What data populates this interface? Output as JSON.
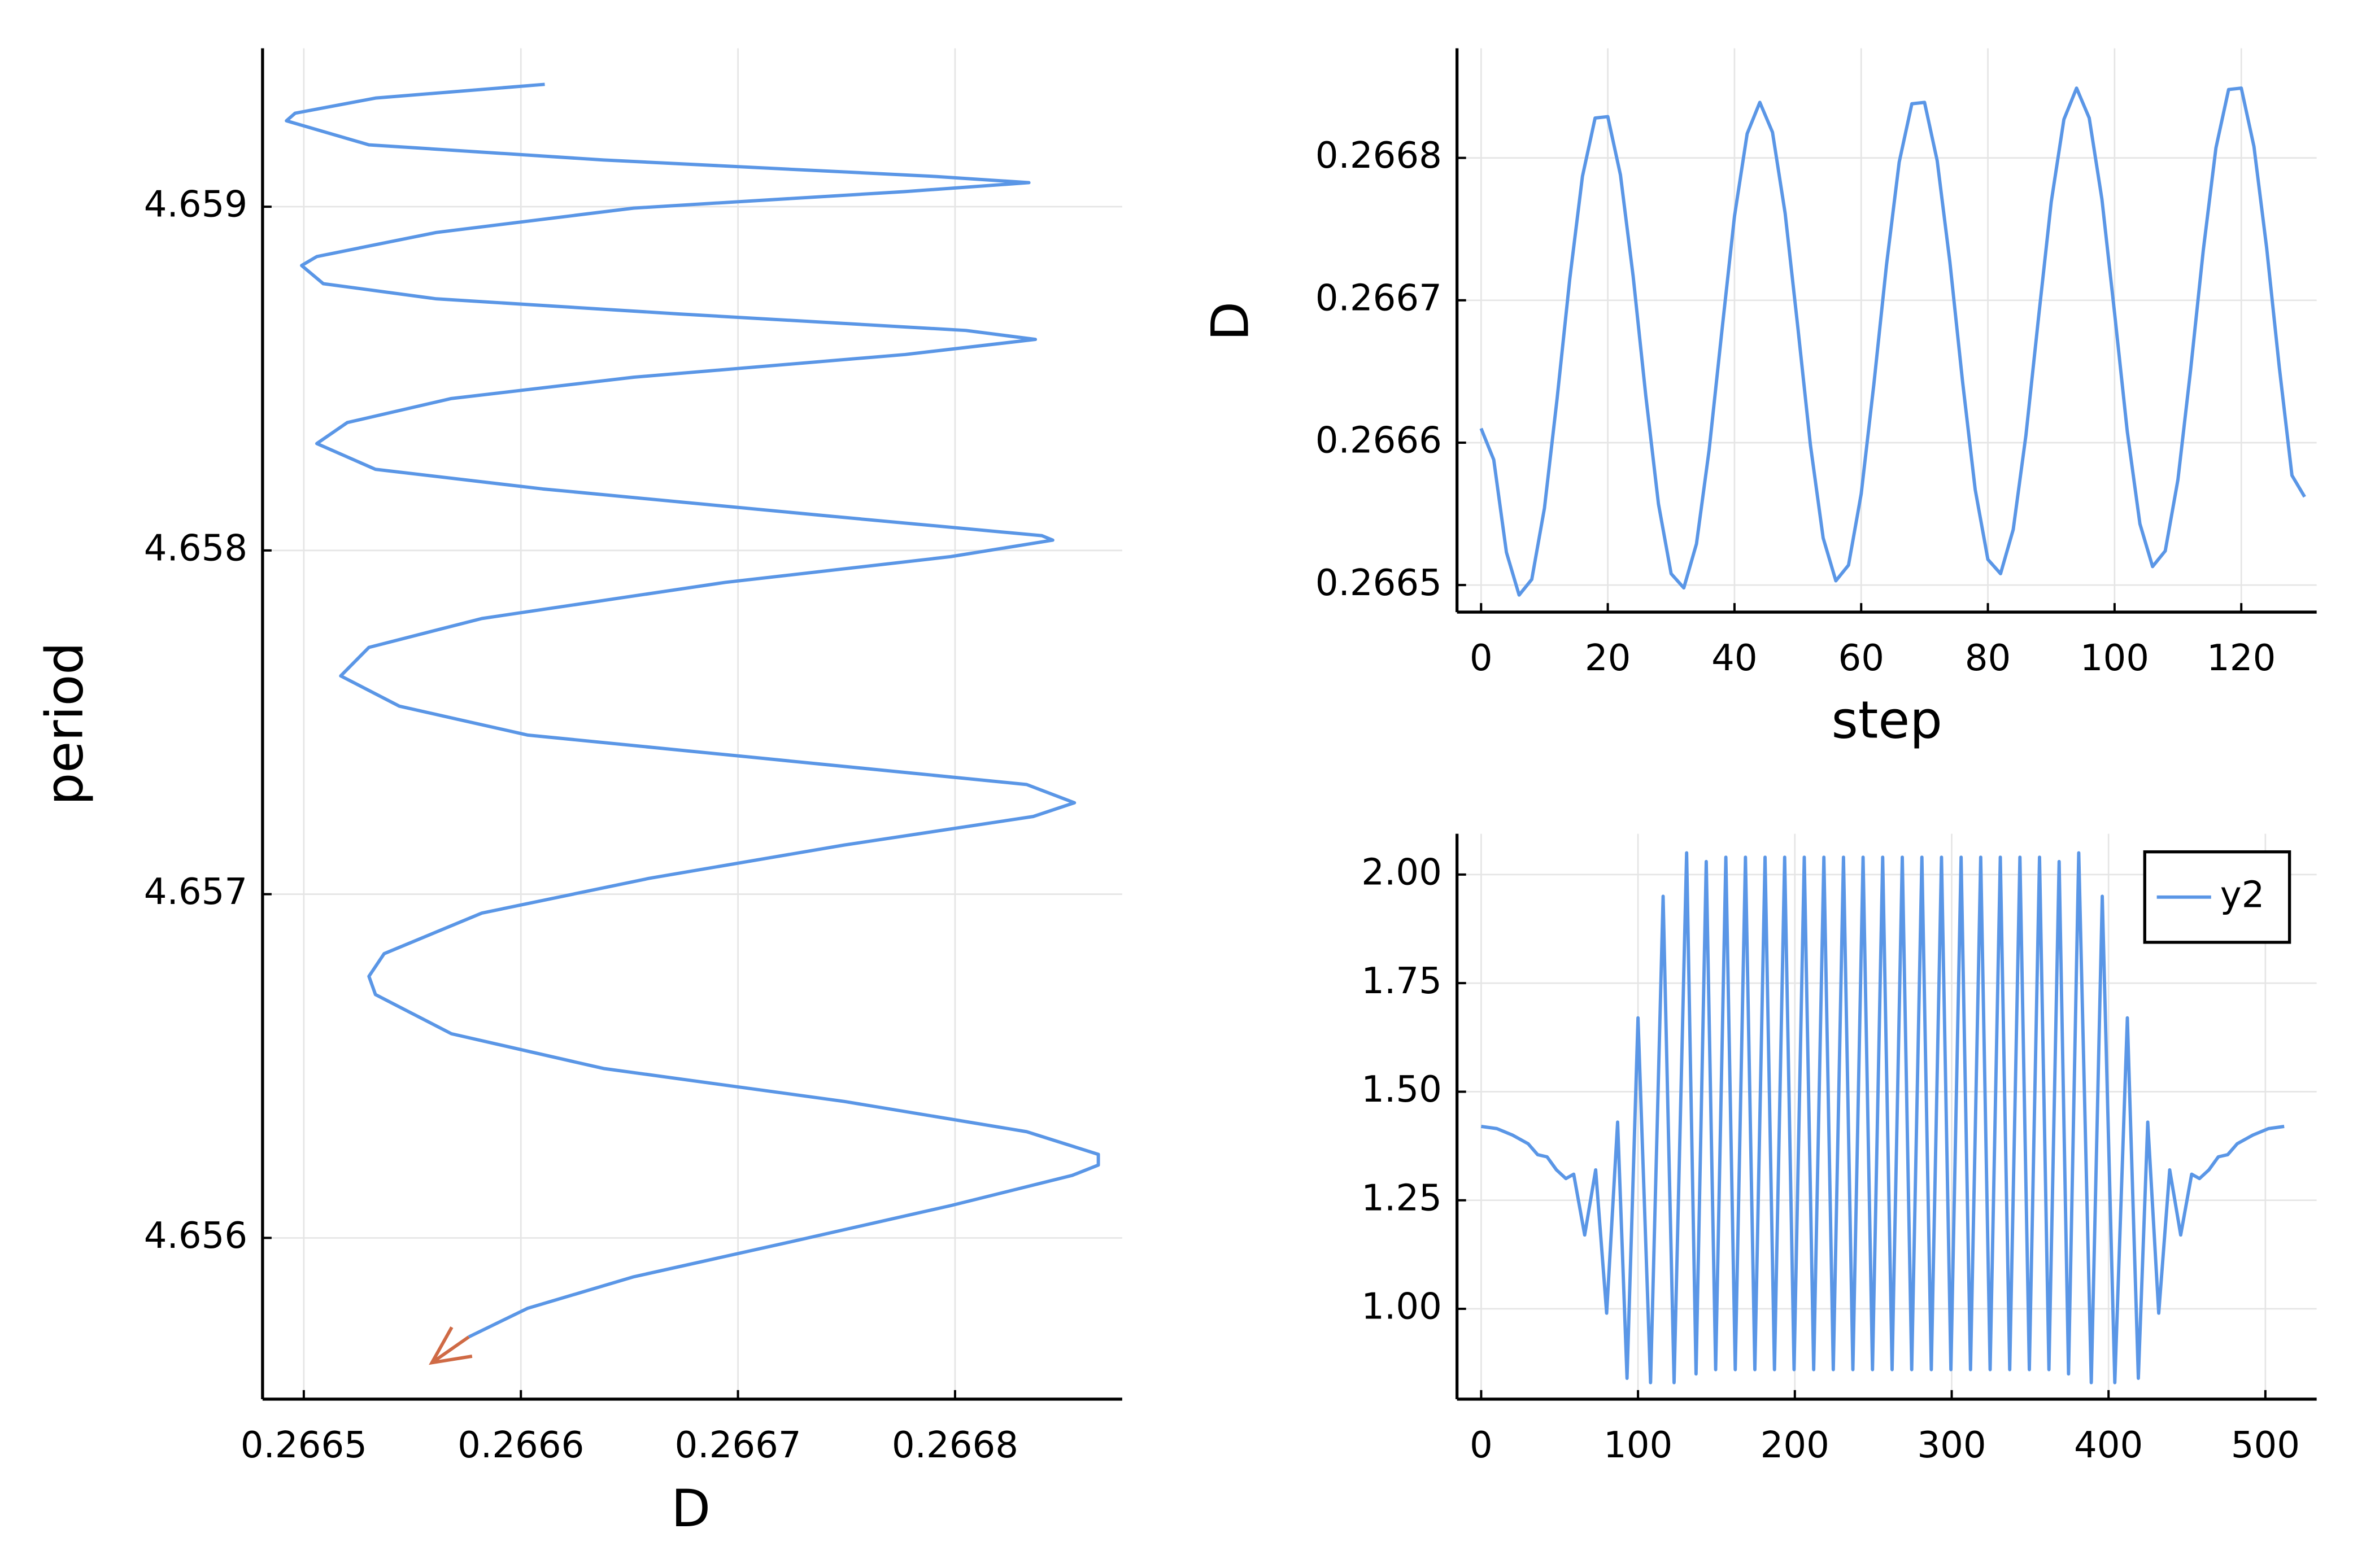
{
  "chart_data": [
    {
      "type": "line",
      "xlabel": "D",
      "ylabel": "period",
      "grid": true,
      "xlim": [
        0.266481,
        0.266877
      ],
      "ylim": [
        4.655531,
        4.659461
      ],
      "xticks": [
        0.2665,
        0.2666,
        0.2667,
        0.2668
      ],
      "yticks": [
        4.656,
        4.657,
        4.658,
        4.659
      ],
      "x": [
        0.266611,
        0.266533,
        0.266496,
        0.266492,
        0.26653,
        0.266638,
        0.266791,
        0.266834,
        0.266777,
        0.266652,
        0.266561,
        0.266506,
        0.266499,
        0.266509,
        0.266561,
        0.266673,
        0.266805,
        0.266837,
        0.266777,
        0.266652,
        0.266568,
        0.26652,
        0.266506,
        0.266533,
        0.26661,
        0.266742,
        0.26684,
        0.266845,
        0.266798,
        0.266694,
        0.266582,
        0.26653,
        0.266517,
        0.266544,
        0.266603,
        0.266707,
        0.266833,
        0.266855,
        0.266836,
        0.266749,
        0.266659,
        0.266582,
        0.266537,
        0.26653,
        0.266533,
        0.266568,
        0.266638,
        0.266749,
        0.266833,
        0.266866,
        0.266866,
        0.266854,
        0.266798,
        0.266721,
        0.266652,
        0.266603,
        0.266576
      ],
      "series": [
        {
          "color": "#5a96e6",
          "values": [
            4.659356,
            4.659316,
            4.659272,
            4.65925,
            4.65918,
            4.659136,
            4.659088,
            4.65907,
            4.659044,
            4.658996,
            4.658925,
            4.658855,
            4.658829,
            4.658776,
            4.658732,
            4.658688,
            4.65864,
            4.658614,
            4.65857,
            4.658504,
            4.658442,
            4.658372,
            4.658311,
            4.658236,
            4.658179,
            4.6581,
            4.658043,
            4.65803,
            4.657982,
            4.657907,
            4.657802,
            4.657718,
            4.657635,
            4.657547,
            4.657463,
            4.657398,
            4.657319,
            4.657266,
            4.657226,
            4.657143,
            4.657046,
            4.656945,
            4.656827,
            4.656761,
            4.656708,
            4.656594,
            4.656493,
            4.656397,
            4.656309,
            4.656243,
            4.656212,
            4.656182,
            4.656094,
            4.655984,
            4.655887,
            4.655795,
            4.655712
          ]
        }
      ],
      "arrow": {
        "color": "#cf6a45",
        "x": [
          0.266576,
          0.266559
        ],
        "values": [
          4.655712,
          4.655637
        ]
      }
    },
    {
      "type": "line",
      "xlabel": "step",
      "ylabel": "D",
      "grid": true,
      "xlim": [
        -3.8,
        131.9
      ],
      "ylim": [
        0.266481,
        0.266877
      ],
      "xticks": [
        0,
        20,
        40,
        60,
        80,
        100,
        120
      ],
      "yticks": [
        0.2665,
        0.2666,
        0.2667,
        0.2668
      ],
      "x": [
        0,
        2,
        4,
        6,
        8,
        10,
        12,
        14,
        16,
        18,
        20,
        22,
        24,
        26,
        28,
        30,
        32,
        34,
        36,
        38,
        40,
        42,
        44,
        46,
        48,
        50,
        52,
        54,
        56,
        58,
        60,
        62,
        64,
        66,
        68,
        70,
        72,
        74,
        76,
        78,
        80,
        82,
        84,
        86,
        88,
        90,
        92,
        94,
        96,
        98,
        100,
        102,
        104,
        106,
        108,
        110,
        112,
        114,
        116,
        118,
        120,
        122,
        124,
        126,
        128,
        130
      ],
      "series": [
        {
          "color": "#5a96e6",
          "values": [
            0.26661,
            0.266588,
            0.266523,
            0.266493,
            0.266504,
            0.266554,
            0.266631,
            0.266715,
            0.266787,
            0.266828,
            0.266829,
            0.266788,
            0.266717,
            0.266633,
            0.266557,
            0.266508,
            0.266498,
            0.266529,
            0.266595,
            0.266678,
            0.266759,
            0.266817,
            0.266839,
            0.266818,
            0.266761,
            0.266681,
            0.266598,
            0.266533,
            0.266503,
            0.266514,
            0.266564,
            0.266641,
            0.266725,
            0.266797,
            0.266838,
            0.266839,
            0.266798,
            0.266727,
            0.266643,
            0.266567,
            0.266518,
            0.266508,
            0.266539,
            0.266605,
            0.266688,
            0.266769,
            0.266827,
            0.266849,
            0.266828,
            0.266771,
            0.266691,
            0.266608,
            0.266543,
            0.266513,
            0.266524,
            0.266574,
            0.266651,
            0.266735,
            0.266807,
            0.266848,
            0.266849,
            0.266808,
            0.266737,
            0.266653,
            0.266577,
            0.266562
          ]
        }
      ]
    },
    {
      "type": "line",
      "grid": true,
      "legend": "top right",
      "xlim": [
        -15.4,
        532.7
      ],
      "ylim": [
        0.792,
        2.094
      ],
      "xticks": [
        0,
        100,
        200,
        300,
        400,
        500
      ],
      "yticks": [
        {
          "value": 1,
          "label": "1.00"
        },
        1.25,
        {
          "value": 1.5,
          "label": "1.50"
        },
        1.75,
        {
          "value": 2,
          "label": "2.00"
        }
      ],
      "x": [
        0,
        10,
        20,
        30,
        36,
        42,
        48,
        54,
        59,
        66,
        73,
        80,
        87,
        93,
        100,
        108,
        116,
        123,
        131,
        137,
        143.5,
        149.5,
        156,
        162,
        168.5,
        174.5,
        181,
        187,
        193.5,
        199.5,
        206,
        212,
        218.5,
        224.5,
        231,
        237,
        243.5,
        249.5,
        256,
        262,
        268.5,
        274.5,
        281,
        287,
        293.5,
        299.5,
        306,
        312,
        318.5,
        324.5,
        331,
        337,
        343.5,
        349.5,
        356,
        362,
        368.5,
        374.5,
        381,
        389,
        396,
        404,
        412,
        419,
        425,
        432,
        439,
        446,
        453,
        458,
        464,
        470,
        476,
        482,
        492,
        502,
        512
      ],
      "series": [
        {
          "name": "y2",
          "color": "#5a96e6",
          "values": [
            1.42,
            1.415,
            1.4,
            1.38,
            1.355,
            1.35,
            1.32,
            1.3,
            1.31,
            1.17,
            1.32,
            0.99,
            1.43,
            0.84,
            1.67,
            0.83,
            1.95,
            0.83,
            2.05,
            0.85,
            2.03,
            0.86,
            2.04,
            0.86,
            2.04,
            0.86,
            2.04,
            0.86,
            2.04,
            0.86,
            2.04,
            0.86,
            2.04,
            0.86,
            2.04,
            0.86,
            2.04,
            0.86,
            2.04,
            0.86,
            2.04,
            0.86,
            2.04,
            0.86,
            2.04,
            0.86,
            2.04,
            0.86,
            2.04,
            0.86,
            2.04,
            0.86,
            2.04,
            0.86,
            2.04,
            0.86,
            2.03,
            0.85,
            2.05,
            0.83,
            1.95,
            0.83,
            1.67,
            0.84,
            1.43,
            0.99,
            1.32,
            1.17,
            1.31,
            1.3,
            1.32,
            1.35,
            1.355,
            1.38,
            1.4,
            1.415,
            1.42
          ]
        }
      ]
    }
  ]
}
